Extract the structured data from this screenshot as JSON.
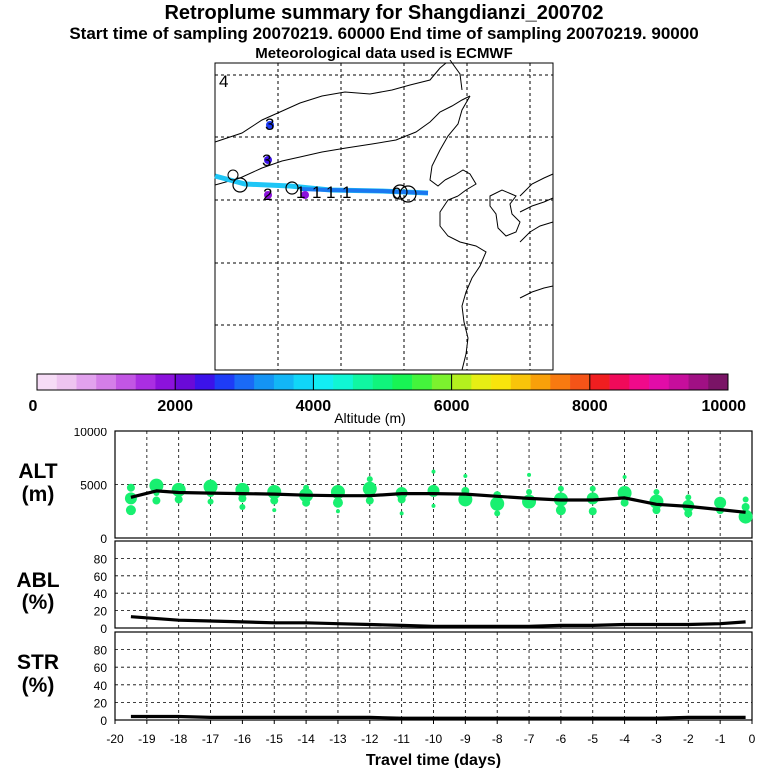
{
  "header": {
    "title": "Retroplume summary for Shangdianzi_200702",
    "sampling": "Start time of sampling 20070219. 60000     End time of sampling 20070219. 90000",
    "met": "Meteorological data used is ECMWF"
  },
  "colorbar": {
    "label": "Altitude (m)",
    "ticks": [
      "0",
      "2000",
      "4000",
      "6000",
      "8000",
      "10000"
    ],
    "min": 0,
    "max": 10000,
    "colors": [
      "#f6dcf6",
      "#eec4f0",
      "#e2a2ee",
      "#d47ee8",
      "#c256e4",
      "#aa2ee2",
      "#8c12dc",
      "#6a0ad8",
      "#3c12ea",
      "#1e3cf6",
      "#1a6af6",
      "#1494f4",
      "#12b6f6",
      "#10d6f8",
      "#12eef4",
      "#10f6d4",
      "#10f6a2",
      "#10f47c",
      "#18f454",
      "#44f43c",
      "#7cf22e",
      "#b4f01e",
      "#e6ee14",
      "#f8e40c",
      "#f8c40a",
      "#f8a00a",
      "#f87a10",
      "#f45418",
      "#f01e20",
      "#f00a5a",
      "#f00a8a",
      "#e20ca8",
      "#c60e9c",
      "#a01084",
      "#7a1466"
    ]
  },
  "map_labels": {
    "plume_numbers": [
      "4",
      "3",
      "3",
      "2",
      "1",
      "1",
      "1",
      "1",
      "0"
    ]
  },
  "chart_data": [
    {
      "type": "line",
      "name": "alt",
      "label_line1": "ALT",
      "label_line2": "(m)",
      "ylim": [
        0,
        10000
      ],
      "yticks": [
        "10000",
        "5000",
        "0"
      ],
      "x": [
        -19.5,
        -18.7,
        -18,
        -17,
        -16,
        -15,
        -14,
        -13,
        -12,
        -11,
        -10,
        -9,
        -8,
        -7,
        -6,
        -5,
        -4,
        -3,
        -2,
        -1,
        -0.2
      ],
      "values": [
        3800,
        4400,
        4250,
        4200,
        4150,
        4100,
        4000,
        3950,
        3950,
        4150,
        4150,
        4100,
        3900,
        3700,
        3550,
        3550,
        3750,
        3150,
        2950,
        2650,
        2400
      ],
      "scatter_points": [
        {
          "x": -19.5,
          "y": 4700,
          "s": 4
        },
        {
          "x": -19.5,
          "y": 3700,
          "s": 6
        },
        {
          "x": -19.5,
          "y": 2600,
          "s": 5
        },
        {
          "x": -18.7,
          "y": 4900,
          "s": 7
        },
        {
          "x": -18.7,
          "y": 3500,
          "s": 4
        },
        {
          "x": -18.7,
          "y": 4200,
          "s": 3
        },
        {
          "x": -18.0,
          "y": 4500,
          "s": 7
        },
        {
          "x": -18.0,
          "y": 3600,
          "s": 4
        },
        {
          "x": -17.0,
          "y": 4800,
          "s": 7
        },
        {
          "x": -17.0,
          "y": 4200,
          "s": 4
        },
        {
          "x": -17.0,
          "y": 3400,
          "s": 3
        },
        {
          "x": -16.0,
          "y": 4500,
          "s": 7
        },
        {
          "x": -16.0,
          "y": 3700,
          "s": 4
        },
        {
          "x": -16.0,
          "y": 2900,
          "s": 3
        },
        {
          "x": -15.0,
          "y": 4300,
          "s": 7
        },
        {
          "x": -15.0,
          "y": 3500,
          "s": 4
        },
        {
          "x": -15.0,
          "y": 2600,
          "s": 2
        },
        {
          "x": -14.0,
          "y": 4000,
          "s": 7
        },
        {
          "x": -14.0,
          "y": 3300,
          "s": 4
        },
        {
          "x": -14.0,
          "y": 4700,
          "s": 3
        },
        {
          "x": -13.0,
          "y": 4300,
          "s": 7
        },
        {
          "x": -13.0,
          "y": 3300,
          "s": 5
        },
        {
          "x": -13.0,
          "y": 2500,
          "s": 2
        },
        {
          "x": -12.0,
          "y": 4600,
          "s": 7
        },
        {
          "x": -12.0,
          "y": 3500,
          "s": 4
        },
        {
          "x": -12.0,
          "y": 5500,
          "s": 3
        },
        {
          "x": -11.0,
          "y": 4200,
          "s": 6
        },
        {
          "x": -11.0,
          "y": 3600,
          "s": 4
        },
        {
          "x": -11.0,
          "y": 2300,
          "s": 2
        },
        {
          "x": -10.0,
          "y": 4400,
          "s": 6
        },
        {
          "x": -10.0,
          "y": 6200,
          "s": 2
        },
        {
          "x": -10.0,
          "y": 3000,
          "s": 2
        },
        {
          "x": -9.0,
          "y": 3600,
          "s": 7
        },
        {
          "x": -9.0,
          "y": 4400,
          "s": 4
        },
        {
          "x": -9.0,
          "y": 5800,
          "s": 2
        },
        {
          "x": -8.0,
          "y": 3200,
          "s": 7
        },
        {
          "x": -8.0,
          "y": 4000,
          "s": 4
        },
        {
          "x": -8.0,
          "y": 2300,
          "s": 3
        },
        {
          "x": -7.0,
          "y": 3400,
          "s": 7
        },
        {
          "x": -7.0,
          "y": 4300,
          "s": 3
        },
        {
          "x": -7.0,
          "y": 5900,
          "s": 2
        },
        {
          "x": -6.0,
          "y": 3600,
          "s": 7
        },
        {
          "x": -6.0,
          "y": 2600,
          "s": 5
        },
        {
          "x": -6.0,
          "y": 4600,
          "s": 3
        },
        {
          "x": -5.0,
          "y": 3700,
          "s": 6
        },
        {
          "x": -5.0,
          "y": 2500,
          "s": 4
        },
        {
          "x": -5.0,
          "y": 4600,
          "s": 3
        },
        {
          "x": -4.0,
          "y": 4200,
          "s": 7
        },
        {
          "x": -4.0,
          "y": 3300,
          "s": 4
        },
        {
          "x": -4.0,
          "y": 5700,
          "s": 2
        },
        {
          "x": -3.0,
          "y": 3400,
          "s": 7
        },
        {
          "x": -3.0,
          "y": 2600,
          "s": 4
        },
        {
          "x": -3.0,
          "y": 4300,
          "s": 3
        },
        {
          "x": -2.0,
          "y": 3000,
          "s": 6
        },
        {
          "x": -2.0,
          "y": 2300,
          "s": 4
        },
        {
          "x": -2.0,
          "y": 3800,
          "s": 3
        },
        {
          "x": -1.0,
          "y": 3300,
          "s": 6
        },
        {
          "x": -1.0,
          "y": 2600,
          "s": 4
        },
        {
          "x": -0.2,
          "y": 2000,
          "s": 7
        },
        {
          "x": -0.2,
          "y": 2900,
          "s": 4
        },
        {
          "x": -0.2,
          "y": 3600,
          "s": 3
        }
      ],
      "scatter_color": "#18f070"
    },
    {
      "type": "line",
      "name": "abl",
      "label_line1": "ABL",
      "label_line2": "(%)",
      "ylim": [
        0,
        100
      ],
      "yticks": [
        "80",
        "60",
        "40",
        "20",
        "0"
      ],
      "x": [
        -19.5,
        -18,
        -17,
        -16,
        -15,
        -14,
        -13,
        -12,
        -11,
        -10,
        -9,
        -8,
        -7,
        -6,
        -5,
        -4,
        -3,
        -2,
        -1,
        -0.2
      ],
      "values": [
        13,
        9,
        8,
        7,
        6,
        6,
        5,
        4,
        3,
        2,
        2,
        2,
        2,
        3,
        3,
        4,
        4,
        4,
        5,
        7
      ]
    },
    {
      "type": "line",
      "name": "str",
      "label_line1": "STR",
      "label_line2": "(%)",
      "ylim": [
        0,
        100
      ],
      "yticks": [
        "80",
        "60",
        "40",
        "20",
        "0"
      ],
      "x": [
        -19.5,
        -18,
        -17,
        -16,
        -15,
        -14,
        -13,
        -12,
        -11,
        -10,
        -9,
        -8,
        -7,
        -6,
        -5,
        -4,
        -3,
        -2,
        -1,
        -0.2
      ],
      "values": [
        4,
        4,
        3,
        3,
        3,
        3,
        3,
        3,
        2,
        2,
        2,
        2,
        2,
        2,
        2,
        2,
        2,
        3,
        3,
        3
      ],
      "xlabel": "Travel time (days)",
      "xticks": [
        "-20",
        "-19",
        "-18",
        "-17",
        "-16",
        "-15",
        "-14",
        "-13",
        "-12",
        "-11",
        "-10",
        "-9",
        "-8",
        "-7",
        "-6",
        "-5",
        "-4",
        "-3",
        "-2",
        "-1",
        "0"
      ]
    }
  ]
}
